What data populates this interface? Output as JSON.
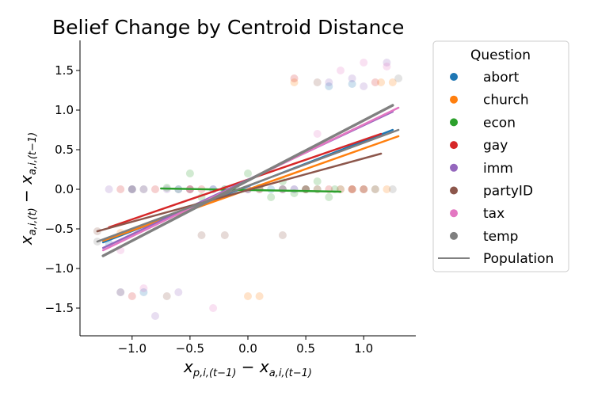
{
  "chart_data": {
    "type": "scatter",
    "title": "Belief Change by Centroid Distance",
    "xlabel": "x_{p,i,(t−1)} − x_{a,i,(t−1)}",
    "ylabel": "x_{a,i,(t)} − x_{a,i,(t−1)}",
    "xlim": [
      -1.45,
      1.45
    ],
    "ylim": [
      -1.85,
      1.88
    ],
    "xticks": [
      -1.0,
      -0.5,
      0.0,
      0.5,
      1.0
    ],
    "xtick_labels": [
      "−1.0",
      "−0.5",
      "0.0",
      "0.5",
      "1.0"
    ],
    "yticks": [
      -1.5,
      -1.0,
      -0.5,
      0.0,
      0.5,
      1.0,
      1.5
    ],
    "ytick_labels": [
      "−1.5",
      "−1.0",
      "−0.5",
      "0.0",
      "0.5",
      "1.0",
      "1.5"
    ],
    "grid": false,
    "legend": {
      "title": "Question",
      "placement": "outside-right",
      "population_label": "Population",
      "population_color": "#808080"
    },
    "series": [
      {
        "name": "abort",
        "color": "#1f77b4",
        "fit": {
          "x": [
            -1.25,
            1.25
          ],
          "y": [
            -0.67,
            0.75
          ]
        },
        "points": [
          [
            -1.2,
            -0.68
          ],
          [
            -0.9,
            -1.3
          ],
          [
            -0.6,
            0.0
          ],
          [
            -0.3,
            0.0
          ],
          [
            0.0,
            0.0
          ],
          [
            0.2,
            0.0
          ],
          [
            0.4,
            0.0
          ],
          [
            0.6,
            0.0
          ],
          [
            0.9,
            1.33
          ],
          [
            1.1,
            0.0
          ],
          [
            0.7,
            1.3
          ],
          [
            -1.0,
            0.0
          ]
        ]
      },
      {
        "name": "church",
        "color": "#ff7f0e",
        "fit": {
          "x": [
            -1.25,
            1.3
          ],
          "y": [
            -0.65,
            0.67
          ]
        },
        "points": [
          [
            -1.1,
            -0.55
          ],
          [
            0.0,
            -1.35
          ],
          [
            0.1,
            -1.35
          ],
          [
            0.4,
            1.35
          ],
          [
            0.8,
            0.0
          ],
          [
            0.9,
            0.0
          ],
          [
            1.0,
            0.0
          ],
          [
            1.1,
            0.0
          ],
          [
            1.2,
            0.0
          ],
          [
            1.15,
            1.35
          ],
          [
            1.25,
            1.35
          ],
          [
            0.6,
            0.0
          ],
          [
            -0.5,
            0.0
          ]
        ]
      },
      {
        "name": "econ",
        "color": "#2ca02c",
        "fit": {
          "x": [
            -0.75,
            0.8
          ],
          "y": [
            0.01,
            -0.03
          ]
        },
        "points": [
          [
            -0.7,
            0.02
          ],
          [
            -0.5,
            0.2
          ],
          [
            -0.4,
            -0.1
          ],
          [
            -0.2,
            0.0
          ],
          [
            0.0,
            0.2
          ],
          [
            0.1,
            0.02
          ],
          [
            0.2,
            -0.1
          ],
          [
            0.3,
            0.1
          ],
          [
            0.4,
            -0.05
          ],
          [
            0.5,
            0.0
          ],
          [
            0.6,
            0.1
          ],
          [
            0.7,
            -0.1
          ],
          [
            0.75,
            0.0
          ],
          [
            -0.1,
            0.0
          ]
        ]
      },
      {
        "name": "gay",
        "color": "#d62728",
        "fit": {
          "x": [
            -1.2,
            1.15
          ],
          "y": [
            -0.48,
            0.7
          ]
        },
        "points": [
          [
            -1.1,
            0.0
          ],
          [
            -0.8,
            0.0
          ],
          [
            -0.4,
            0.0
          ],
          [
            0.1,
            0.0
          ],
          [
            0.5,
            0.0
          ],
          [
            0.9,
            0.0
          ],
          [
            1.0,
            0.0
          ],
          [
            1.1,
            1.35
          ],
          [
            0.4,
            1.4
          ],
          [
            -1.0,
            -1.35
          ],
          [
            0.7,
            0.0
          ]
        ]
      },
      {
        "name": "imm",
        "color": "#9467bd",
        "fit": {
          "x": [
            -1.25,
            1.25
          ],
          "y": [
            -0.74,
            0.98
          ]
        },
        "points": [
          [
            -1.2,
            0.0
          ],
          [
            -1.0,
            0.0
          ],
          [
            -0.9,
            0.0
          ],
          [
            -0.7,
            0.0
          ],
          [
            -0.5,
            0.0
          ],
          [
            -0.3,
            0.0
          ],
          [
            0.3,
            0.0
          ],
          [
            0.7,
            1.35
          ],
          [
            0.9,
            1.4
          ],
          [
            1.0,
            1.3
          ],
          [
            1.2,
            1.6
          ],
          [
            -1.1,
            -1.3
          ],
          [
            -0.8,
            -1.6
          ],
          [
            -0.6,
            -1.3
          ]
        ]
      },
      {
        "name": "partyID",
        "color": "#8c564b",
        "fit": {
          "x": [
            -1.3,
            1.15
          ],
          "y": [
            -0.53,
            0.45
          ]
        },
        "points": [
          [
            -1.3,
            -0.53
          ],
          [
            -1.0,
            0.0
          ],
          [
            -0.7,
            -1.35
          ],
          [
            -0.4,
            -0.58
          ],
          [
            -0.2,
            -0.58
          ],
          [
            0.0,
            0.0
          ],
          [
            0.3,
            -0.58
          ],
          [
            0.5,
            0.0
          ],
          [
            0.6,
            1.35
          ],
          [
            0.9,
            0.0
          ],
          [
            -0.5,
            0.0
          ],
          [
            0.3,
            0.0
          ]
        ]
      },
      {
        "name": "tax",
        "color": "#e377c2",
        "fit": {
          "x": [
            -1.25,
            1.3
          ],
          "y": [
            -0.77,
            1.03
          ]
        },
        "points": [
          [
            -1.1,
            -0.77
          ],
          [
            -0.9,
            -1.25
          ],
          [
            -0.5,
            0.0
          ],
          [
            0.0,
            0.0
          ],
          [
            0.6,
            0.7
          ],
          [
            0.8,
            1.5
          ],
          [
            1.0,
            1.6
          ],
          [
            1.2,
            1.55
          ],
          [
            -0.3,
            -1.5
          ],
          [
            0.4,
            0.0
          ]
        ]
      },
      {
        "name": "temp",
        "color": "#7f7f7f",
        "fit": {
          "x": [
            -1.3,
            1.3
          ],
          "y": [
            -0.66,
            0.75
          ]
        },
        "points": [
          [
            -1.3,
            -0.66
          ],
          [
            -1.1,
            -1.3
          ],
          [
            -0.9,
            0.0
          ],
          [
            -0.6,
            0.0
          ],
          [
            -0.2,
            0.0
          ],
          [
            0.1,
            0.0
          ],
          [
            0.3,
            0.0
          ],
          [
            0.5,
            0.0
          ],
          [
            0.8,
            0.0
          ],
          [
            1.0,
            0.0
          ],
          [
            1.25,
            0.0
          ],
          [
            1.3,
            1.4
          ]
        ]
      }
    ],
    "population_fit": {
      "name": "Population",
      "color": "#808080",
      "x": [
        -1.25,
        1.25
      ],
      "y": [
        -0.84,
        1.06
      ]
    }
  }
}
